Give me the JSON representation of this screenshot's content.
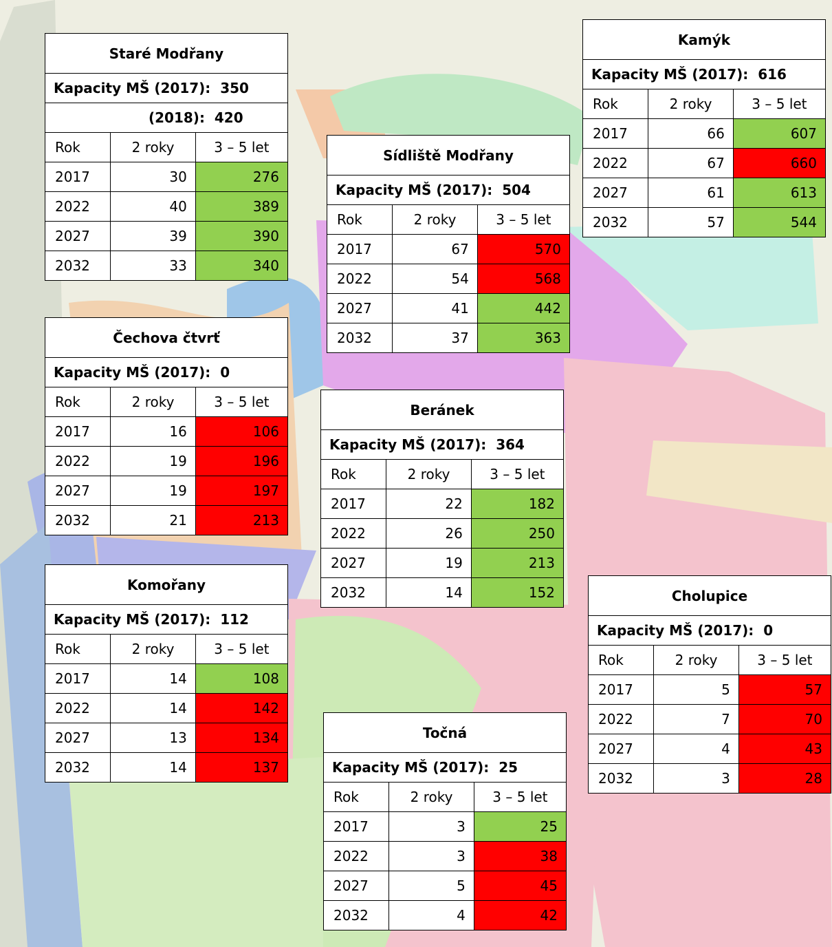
{
  "tables": [
    {
      "title": "Staré Modřany",
      "capacity": [
        "Kapacity MŠ (2017):  350",
        "(2018):  420"
      ],
      "header": [
        "Rok",
        "2 roky",
        "3 – 5 let"
      ],
      "rows": [
        [
          2017,
          30,
          276
        ],
        [
          2022,
          40,
          389
        ],
        [
          2027,
          39,
          390
        ],
        [
          2032,
          33,
          340
        ]
      ],
      "fills": [
        "#92d050",
        "#92d050",
        "#92d050",
        "#92d050"
      ]
    },
    {
      "title": "Sídliště Modřany",
      "capacity": [
        "Kapacity MŠ (2017):  504"
      ],
      "header": [
        "Rok",
        "2 roky",
        "3 – 5 let"
      ],
      "rows": [
        [
          2017,
          67,
          570
        ],
        [
          2022,
          54,
          568
        ],
        [
          2027,
          41,
          442
        ],
        [
          2032,
          37,
          363
        ]
      ],
      "fills": [
        "#ff0000",
        "#ff0000",
        "#92d050",
        "#92d050"
      ]
    },
    {
      "title": "Kamýk",
      "capacity": [
        "Kapacity MŠ (2017):  616"
      ],
      "header": [
        "Rok",
        "2 roky",
        "3 – 5 let"
      ],
      "rows": [
        [
          2017,
          66,
          607
        ],
        [
          2022,
          67,
          660
        ],
        [
          2027,
          61,
          613
        ],
        [
          2032,
          57,
          544
        ]
      ],
      "fills": [
        "#92d050",
        "#ff0000",
        "#92d050",
        "#92d050"
      ]
    },
    {
      "title": "Čechova čtvrť",
      "capacity": [
        "Kapacity MŠ (2017):  0"
      ],
      "header": [
        "Rok",
        "2 roky",
        "3 – 5 let"
      ],
      "rows": [
        [
          2017,
          16,
          106
        ],
        [
          2022,
          19,
          196
        ],
        [
          2027,
          19,
          197
        ],
        [
          2032,
          21,
          213
        ]
      ],
      "fills": [
        "#ff0000",
        "#ff0000",
        "#ff0000",
        "#ff0000"
      ]
    },
    {
      "title": "Beránek",
      "capacity": [
        "Kapacity MŠ (2017):  364"
      ],
      "header": [
        "Rok",
        "2 roky",
        "3 – 5 let"
      ],
      "rows": [
        [
          2017,
          22,
          182
        ],
        [
          2022,
          26,
          250
        ],
        [
          2027,
          19,
          213
        ],
        [
          2032,
          14,
          152
        ]
      ],
      "fills": [
        "#92d050",
        "#92d050",
        "#92d050",
        "#92d050"
      ]
    },
    {
      "title": "Komořany",
      "capacity": [
        "Kapacity MŠ (2017):  112"
      ],
      "header": [
        "Rok",
        "2 roky",
        "3 – 5 let"
      ],
      "rows": [
        [
          2017,
          14,
          108
        ],
        [
          2022,
          14,
          142
        ],
        [
          2027,
          13,
          134
        ],
        [
          2032,
          14,
          137
        ]
      ],
      "fills": [
        "#92d050",
        "#ff0000",
        "#ff0000",
        "#ff0000"
      ]
    },
    {
      "title": "Cholupice",
      "capacity": [
        "Kapacity MŠ (2017):  0"
      ],
      "header": [
        "Rok",
        "2 roky",
        "3 – 5 let"
      ],
      "rows": [
        [
          2017,
          5,
          57
        ],
        [
          2022,
          7,
          70
        ],
        [
          2027,
          4,
          43
        ],
        [
          2032,
          3,
          28
        ]
      ],
      "fills": [
        "#ff0000",
        "#ff0000",
        "#ff0000",
        "#ff0000"
      ]
    },
    {
      "title": "Točná",
      "capacity": [
        "Kapacity MŠ (2017):  25"
      ],
      "header": [
        "Rok",
        "2 roky",
        "3 – 5 let"
      ],
      "rows": [
        [
          2017,
          3,
          25
        ],
        [
          2022,
          3,
          38
        ],
        [
          2027,
          5,
          45
        ],
        [
          2032,
          4,
          42
        ]
      ],
      "fills": [
        "#92d050",
        "#ff0000",
        "#ff0000",
        "#ff0000"
      ]
    }
  ]
}
